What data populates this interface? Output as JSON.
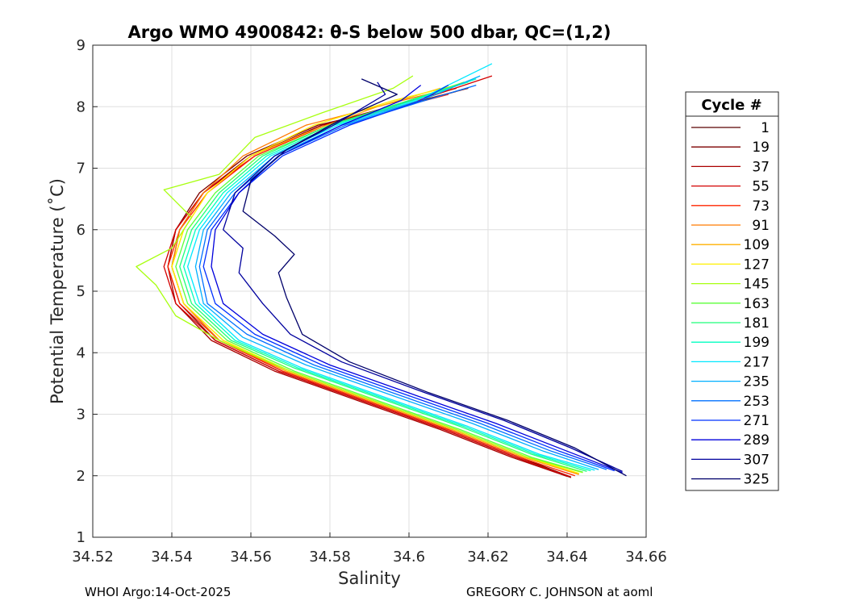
{
  "chart_data": {
    "type": "line",
    "title": "Argo WMO 4900842: θ-S below 500 dbar,  QC=(1,2)",
    "xlabel": "Salinity",
    "ylabel": "Potential Temperature (˚C)",
    "xlim": [
      34.52,
      34.66
    ],
    "ylim": [
      1,
      9
    ],
    "xticks": [
      "34.52",
      "34.54",
      "34.56",
      "34.58",
      "34.6",
      "34.62",
      "34.64",
      "34.66"
    ],
    "yticks": [
      "1",
      "2",
      "3",
      "4",
      "5",
      "6",
      "7",
      "8",
      "9"
    ],
    "grid": true,
    "legend_title": "Cycle #",
    "legend_position": "right-outside",
    "series": [
      {
        "name": "1",
        "color": "#5a0000",
        "points": [
          [
            34.641,
            1.98
          ],
          [
            34.628,
            2.3
          ],
          [
            34.61,
            2.75
          ],
          [
            34.59,
            3.2
          ],
          [
            34.568,
            3.7
          ],
          [
            34.552,
            4.2
          ],
          [
            34.543,
            4.8
          ],
          [
            34.54,
            5.4
          ],
          [
            34.542,
            6.0
          ],
          [
            34.548,
            6.6
          ],
          [
            34.56,
            7.2
          ],
          [
            34.578,
            7.7
          ],
          [
            34.598,
            8.0
          ],
          [
            34.612,
            8.25
          ]
        ]
      },
      {
        "name": "19",
        "color": "#7d0000",
        "points": [
          [
            34.641,
            1.97
          ],
          [
            34.627,
            2.3
          ],
          [
            34.609,
            2.75
          ],
          [
            34.589,
            3.2
          ],
          [
            34.567,
            3.7
          ],
          [
            34.551,
            4.2
          ],
          [
            34.542,
            4.8
          ],
          [
            34.539,
            5.4
          ],
          [
            34.541,
            6.0
          ],
          [
            34.547,
            6.6
          ],
          [
            34.559,
            7.2
          ],
          [
            34.577,
            7.7
          ],
          [
            34.597,
            8.0
          ],
          [
            34.615,
            8.3
          ]
        ]
      },
      {
        "name": "37",
        "color": "#aa0000",
        "points": [
          [
            34.64,
            1.99
          ],
          [
            34.626,
            2.3
          ],
          [
            34.608,
            2.75
          ],
          [
            34.588,
            3.2
          ],
          [
            34.566,
            3.7
          ],
          [
            34.55,
            4.2
          ],
          [
            34.541,
            4.8
          ],
          [
            34.539,
            5.4
          ],
          [
            34.541,
            6.0
          ],
          [
            34.548,
            6.6
          ],
          [
            34.56,
            7.2
          ],
          [
            34.578,
            7.7
          ],
          [
            34.598,
            8.05
          ],
          [
            34.612,
            8.3
          ]
        ]
      },
      {
        "name": "55",
        "color": "#d40000",
        "points": [
          [
            34.641,
            1.98
          ],
          [
            34.627,
            2.3
          ],
          [
            34.609,
            2.75
          ],
          [
            34.589,
            3.2
          ],
          [
            34.567,
            3.7
          ],
          [
            34.551,
            4.2
          ],
          [
            34.541,
            4.8
          ],
          [
            34.538,
            5.4
          ],
          [
            34.541,
            6.0
          ],
          [
            34.548,
            6.6
          ],
          [
            34.561,
            7.2
          ],
          [
            34.579,
            7.7
          ],
          [
            34.6,
            8.05
          ],
          [
            34.621,
            8.5
          ]
        ]
      },
      {
        "name": "73",
        "color": "#ff2400",
        "points": [
          [
            34.642,
            2.0
          ],
          [
            34.628,
            2.3
          ],
          [
            34.61,
            2.75
          ],
          [
            34.59,
            3.2
          ],
          [
            34.568,
            3.7
          ],
          [
            34.552,
            4.2
          ],
          [
            34.542,
            4.8
          ],
          [
            34.539,
            5.4
          ],
          [
            34.542,
            6.0
          ],
          [
            34.549,
            6.6
          ],
          [
            34.561,
            7.2
          ],
          [
            34.579,
            7.7
          ],
          [
            34.598,
            8.0
          ],
          [
            34.61,
            8.2
          ]
        ]
      },
      {
        "name": "91",
        "color": "#ff7a00",
        "points": [
          [
            34.643,
            2.02
          ],
          [
            34.629,
            2.3
          ],
          [
            34.611,
            2.75
          ],
          [
            34.591,
            3.2
          ],
          [
            34.569,
            3.7
          ],
          [
            34.552,
            4.2
          ],
          [
            34.543,
            4.8
          ],
          [
            34.54,
            5.4
          ],
          [
            34.542,
            6.0
          ],
          [
            34.548,
            6.6
          ],
          [
            34.558,
            7.2
          ],
          [
            34.574,
            7.7
          ],
          [
            34.595,
            8.05
          ],
          [
            34.611,
            8.3
          ]
        ]
      },
      {
        "name": "109",
        "color": "#ffb000",
        "points": [
          [
            34.643,
            2.03
          ],
          [
            34.629,
            2.3
          ],
          [
            34.611,
            2.75
          ],
          [
            34.591,
            3.2
          ],
          [
            34.569,
            3.7
          ],
          [
            34.553,
            4.2
          ],
          [
            34.543,
            4.8
          ],
          [
            34.54,
            5.4
          ],
          [
            34.543,
            6.0
          ],
          [
            34.549,
            6.6
          ],
          [
            34.56,
            7.2
          ],
          [
            34.575,
            7.6
          ],
          [
            34.592,
            8.0
          ],
          [
            34.608,
            8.3
          ]
        ]
      },
      {
        "name": "127",
        "color": "#fff000",
        "points": [
          [
            34.643,
            2.04
          ],
          [
            34.63,
            2.3
          ],
          [
            34.612,
            2.75
          ],
          [
            34.592,
            3.2
          ],
          [
            34.57,
            3.7
          ],
          [
            34.553,
            4.2
          ],
          [
            34.543,
            4.8
          ],
          [
            34.54,
            5.4
          ],
          [
            34.543,
            6.0
          ],
          [
            34.549,
            6.6
          ],
          [
            34.56,
            7.2
          ],
          [
            34.576,
            7.7
          ],
          [
            34.596,
            8.1
          ],
          [
            34.612,
            8.35
          ]
        ]
      },
      {
        "name": "145",
        "color": "#a8ff10",
        "points": [
          [
            34.644,
            2.05
          ],
          [
            34.63,
            2.3
          ],
          [
            34.612,
            2.75
          ],
          [
            34.592,
            3.2
          ],
          [
            34.57,
            3.7
          ],
          [
            34.552,
            4.2
          ],
          [
            34.541,
            4.6
          ],
          [
            34.536,
            5.1
          ],
          [
            34.531,
            5.4
          ],
          [
            34.54,
            5.7
          ],
          [
            34.545,
            6.2
          ],
          [
            34.538,
            6.65
          ],
          [
            34.552,
            6.9
          ],
          [
            34.561,
            7.5
          ],
          [
            34.578,
            7.9
          ],
          [
            34.596,
            8.3
          ],
          [
            34.601,
            8.5
          ]
        ]
      },
      {
        "name": "163",
        "color": "#5cff3a",
        "points": [
          [
            34.644,
            2.06
          ],
          [
            34.631,
            2.3
          ],
          [
            34.613,
            2.75
          ],
          [
            34.593,
            3.2
          ],
          [
            34.571,
            3.7
          ],
          [
            34.554,
            4.2
          ],
          [
            34.544,
            4.8
          ],
          [
            34.541,
            5.4
          ],
          [
            34.544,
            6.0
          ],
          [
            34.551,
            6.6
          ],
          [
            34.562,
            7.2
          ],
          [
            34.58,
            7.7
          ],
          [
            34.6,
            8.1
          ],
          [
            34.614,
            8.4
          ]
        ]
      },
      {
        "name": "181",
        "color": "#1eff7a",
        "points": [
          [
            34.645,
            2.07
          ],
          [
            34.631,
            2.35
          ],
          [
            34.613,
            2.8
          ],
          [
            34.593,
            3.25
          ],
          [
            34.571,
            3.75
          ],
          [
            34.555,
            4.2
          ],
          [
            34.545,
            4.8
          ],
          [
            34.542,
            5.4
          ],
          [
            34.545,
            6.0
          ],
          [
            34.552,
            6.6
          ],
          [
            34.563,
            7.2
          ],
          [
            34.58,
            7.7
          ],
          [
            34.6,
            8.1
          ],
          [
            34.615,
            8.4
          ]
        ]
      },
      {
        "name": "199",
        "color": "#00ffc0",
        "points": [
          [
            34.646,
            2.08
          ],
          [
            34.632,
            2.35
          ],
          [
            34.614,
            2.8
          ],
          [
            34.594,
            3.25
          ],
          [
            34.572,
            3.75
          ],
          [
            34.556,
            4.2
          ],
          [
            34.546,
            4.8
          ],
          [
            34.543,
            5.4
          ],
          [
            34.546,
            6.0
          ],
          [
            34.553,
            6.6
          ],
          [
            34.564,
            7.2
          ],
          [
            34.581,
            7.7
          ],
          [
            34.601,
            8.1
          ],
          [
            34.617,
            8.45
          ]
        ]
      },
      {
        "name": "217",
        "color": "#00e8ff",
        "points": [
          [
            34.647,
            2.09
          ],
          [
            34.633,
            2.35
          ],
          [
            34.615,
            2.8
          ],
          [
            34.595,
            3.25
          ],
          [
            34.573,
            3.75
          ],
          [
            34.557,
            4.2
          ],
          [
            34.547,
            4.8
          ],
          [
            34.544,
            5.4
          ],
          [
            34.547,
            6.0
          ],
          [
            34.554,
            6.6
          ],
          [
            34.565,
            7.2
          ],
          [
            34.582,
            7.7
          ],
          [
            34.602,
            8.1
          ],
          [
            34.621,
            8.7
          ]
        ]
      },
      {
        "name": "235",
        "color": "#00b0ff",
        "points": [
          [
            34.648,
            2.1
          ],
          [
            34.634,
            2.4
          ],
          [
            34.616,
            2.85
          ],
          [
            34.596,
            3.3
          ],
          [
            34.574,
            3.8
          ],
          [
            34.558,
            4.25
          ],
          [
            34.548,
            4.8
          ],
          [
            34.546,
            5.4
          ],
          [
            34.548,
            6.0
          ],
          [
            34.555,
            6.6
          ],
          [
            34.566,
            7.2
          ],
          [
            34.583,
            7.7
          ],
          [
            34.603,
            8.1
          ],
          [
            34.618,
            8.5
          ]
        ]
      },
      {
        "name": "253",
        "color": "#0070ff",
        "points": [
          [
            34.65,
            2.1
          ],
          [
            34.636,
            2.4
          ],
          [
            34.618,
            2.85
          ],
          [
            34.598,
            3.3
          ],
          [
            34.576,
            3.8
          ],
          [
            34.559,
            4.3
          ],
          [
            34.549,
            4.8
          ],
          [
            34.547,
            5.4
          ],
          [
            34.549,
            6.0
          ],
          [
            34.556,
            6.6
          ],
          [
            34.567,
            7.2
          ],
          [
            34.584,
            7.7
          ],
          [
            34.604,
            8.1
          ],
          [
            34.617,
            8.35
          ]
        ]
      },
      {
        "name": "271",
        "color": "#0030ff",
        "points": [
          [
            34.652,
            2.08
          ],
          [
            34.638,
            2.4
          ],
          [
            34.62,
            2.85
          ],
          [
            34.6,
            3.3
          ],
          [
            34.578,
            3.8
          ],
          [
            34.561,
            4.3
          ],
          [
            34.551,
            4.8
          ],
          [
            34.548,
            5.4
          ],
          [
            34.55,
            6.0
          ],
          [
            34.557,
            6.6
          ],
          [
            34.568,
            7.2
          ],
          [
            34.585,
            7.7
          ],
          [
            34.603,
            8.1
          ],
          [
            34.61,
            8.35
          ]
        ]
      },
      {
        "name": "289",
        "color": "#0000dc",
        "points": [
          [
            34.654,
            2.05
          ],
          [
            34.64,
            2.4
          ],
          [
            34.622,
            2.85
          ],
          [
            34.602,
            3.3
          ],
          [
            34.58,
            3.8
          ],
          [
            34.563,
            4.3
          ],
          [
            34.553,
            4.8
          ],
          [
            34.55,
            5.4
          ],
          [
            34.551,
            6.0
          ],
          [
            34.557,
            6.6
          ],
          [
            34.567,
            7.2
          ],
          [
            34.583,
            7.7
          ],
          [
            34.598,
            8.1
          ],
          [
            34.603,
            8.35
          ]
        ]
      },
      {
        "name": "307",
        "color": "#00009e",
        "points": [
          [
            34.654,
            2.07
          ],
          [
            34.641,
            2.45
          ],
          [
            34.624,
            2.9
          ],
          [
            34.604,
            3.35
          ],
          [
            34.583,
            3.85
          ],
          [
            34.57,
            4.3
          ],
          [
            34.563,
            4.8
          ],
          [
            34.557,
            5.3
          ],
          [
            34.558,
            5.7
          ],
          [
            34.553,
            6.0
          ],
          [
            34.556,
            6.6
          ],
          [
            34.566,
            7.2
          ],
          [
            34.581,
            7.7
          ],
          [
            34.594,
            8.2
          ],
          [
            34.592,
            8.4
          ]
        ]
      },
      {
        "name": "325",
        "color": "#00006a",
        "points": [
          [
            34.655,
            2.0
          ],
          [
            34.642,
            2.45
          ],
          [
            34.625,
            2.9
          ],
          [
            34.605,
            3.35
          ],
          [
            34.585,
            3.85
          ],
          [
            34.573,
            4.3
          ],
          [
            34.569,
            4.9
          ],
          [
            34.567,
            5.3
          ],
          [
            34.571,
            5.6
          ],
          [
            34.566,
            5.9
          ],
          [
            34.558,
            6.3
          ],
          [
            34.56,
            6.8
          ],
          [
            34.569,
            7.3
          ],
          [
            34.583,
            7.8
          ],
          [
            34.597,
            8.2
          ],
          [
            34.588,
            8.45
          ]
        ]
      }
    ]
  },
  "footer": {
    "left": "WHOI Argo:14-Oct-2025",
    "right": "GREGORY C. JOHNSON at aoml"
  }
}
